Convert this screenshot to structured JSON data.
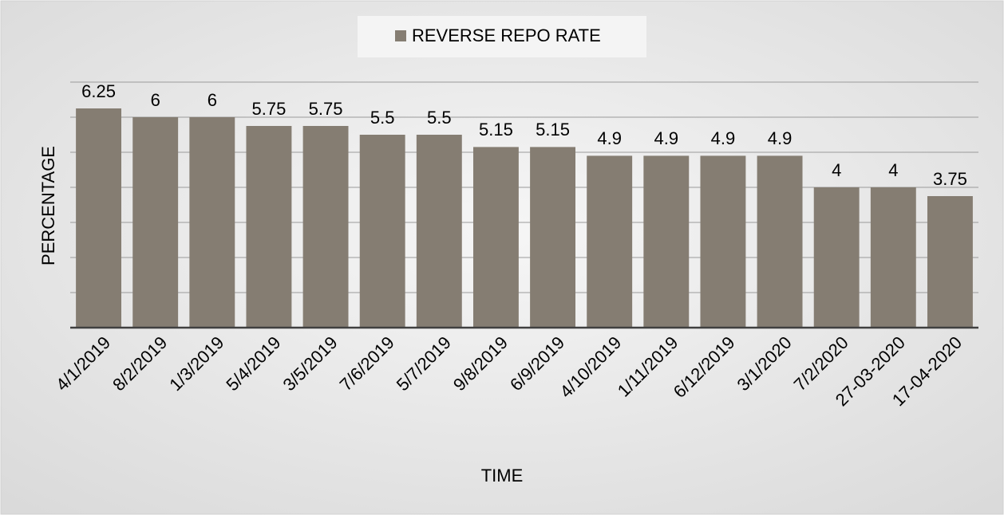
{
  "chart_data": {
    "type": "bar",
    "legend": "REVERSE REPO RATE",
    "x_label": "TIME",
    "y_label": "PERCENTAGE",
    "categories": [
      "4/1/2019",
      "8/2/2019",
      "1/3/2019",
      "5/4/2019",
      "3/5/2019",
      "7/6/2019",
      "5/7/2019",
      "9/8/2019",
      "6/9/2019",
      "4/10/2019",
      "1/11/2019",
      "6/12/2019",
      "3/1/2020",
      "7/2/2020",
      "27-03-2020",
      "17-04-2020"
    ],
    "values": [
      6.25,
      6,
      6,
      5.75,
      5.75,
      5.5,
      5.5,
      5.15,
      5.15,
      4.9,
      4.9,
      4.9,
      4.9,
      4,
      4,
      3.75
    ],
    "color": "#857d72",
    "ylim": [
      0,
      7
    ],
    "yticks": [
      0,
      1,
      2,
      3,
      4,
      5,
      6,
      7
    ],
    "grid": true
  }
}
